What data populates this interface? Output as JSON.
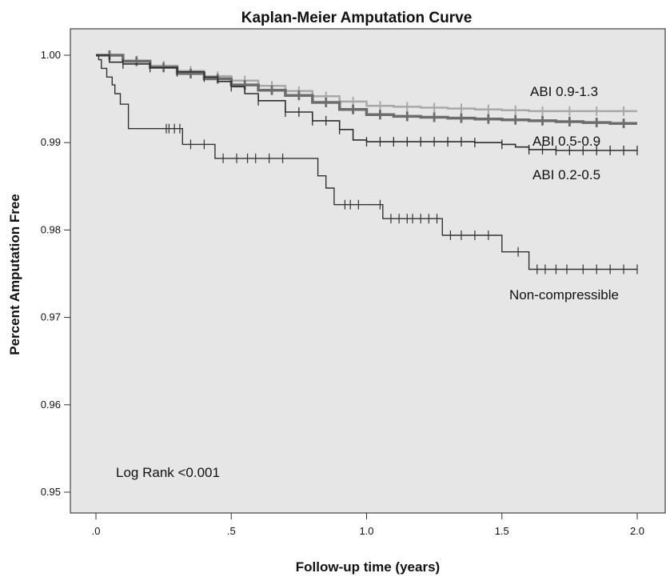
{
  "chart_data": {
    "type": "line",
    "title": "Kaplan-Meier Amputation Curve",
    "xlabel": "Follow-up time (years)",
    "ylabel": "Percent Amputation Free",
    "xlim": [
      0,
      2.0
    ],
    "ylim": [
      0.95,
      1.0
    ],
    "x_ticks": [
      {
        "value": 0,
        "label": ".0"
      },
      {
        "value": 0.5,
        "label": ".5"
      },
      {
        "value": 1.0,
        "label": "1.0"
      },
      {
        "value": 1.5,
        "label": "1.5"
      },
      {
        "value": 2.0,
        "label": "2.0"
      }
    ],
    "y_ticks": [
      {
        "value": 1.0,
        "label": "1.00"
      },
      {
        "value": 0.99,
        "label": "0.99"
      },
      {
        "value": 0.98,
        "label": "0.98"
      },
      {
        "value": 0.97,
        "label": "0.97"
      },
      {
        "value": 0.96,
        "label": "0.96"
      },
      {
        "value": 0.95,
        "label": "0.95"
      }
    ],
    "grid": false,
    "background": "#e6e6e6",
    "annotation": "Log Rank <0.001",
    "series": [
      {
        "name": "ABI 0.9-1.3",
        "color": "#a8a8a8",
        "stroke": 2.5,
        "x": [
          0,
          0.1,
          0.2,
          0.3,
          0.4,
          0.5,
          0.6,
          0.7,
          0.8,
          0.9,
          1.0,
          1.1,
          1.2,
          1.3,
          1.4,
          1.5,
          1.6,
          1.7,
          1.8,
          1.9,
          2.0
        ],
        "y": [
          1.0,
          0.9994,
          0.9988,
          0.9982,
          0.9976,
          0.9971,
          0.9965,
          0.9959,
          0.9953,
          0.9947,
          0.9942,
          0.9941,
          0.994,
          0.9939,
          0.9938,
          0.9937,
          0.9936,
          0.9936,
          0.9936,
          0.9936,
          0.9936
        ],
        "censor_x": [
          0.05,
          0.15,
          0.25,
          0.35,
          0.45,
          0.55,
          0.65,
          0.75,
          0.85,
          0.95,
          1.05,
          1.15,
          1.25,
          1.35,
          1.45,
          1.55,
          1.65,
          1.75,
          1.85,
          1.95
        ]
      },
      {
        "name": "ABI 0.5-0.9",
        "color": "#6c6c6c",
        "stroke": 3.5,
        "x": [
          0,
          0.1,
          0.2,
          0.3,
          0.4,
          0.5,
          0.6,
          0.7,
          0.8,
          0.9,
          1.0,
          1.1,
          1.2,
          1.3,
          1.4,
          1.5,
          1.6,
          1.7,
          1.8,
          1.9,
          2.0
        ],
        "y": [
          1.0,
          0.9993,
          0.9986,
          0.9979,
          0.9973,
          0.9966,
          0.996,
          0.9954,
          0.9946,
          0.9938,
          0.9932,
          0.993,
          0.9929,
          0.9928,
          0.9927,
          0.9926,
          0.9925,
          0.9924,
          0.9923,
          0.9922,
          0.9922
        ],
        "censor_x": [
          0.05,
          0.15,
          0.25,
          0.35,
          0.45,
          0.55,
          0.65,
          0.75,
          0.85,
          0.95,
          1.05,
          1.15,
          1.25,
          1.35,
          1.45,
          1.55,
          1.65,
          1.75,
          1.85,
          1.95
        ]
      },
      {
        "name": "ABI 0.2-0.5",
        "color": "#2e2e2e",
        "stroke": 1.6,
        "x": [
          0,
          0.05,
          0.1,
          0.2,
          0.3,
          0.4,
          0.45,
          0.5,
          0.55,
          0.6,
          0.7,
          0.8,
          0.9,
          0.95,
          1.0,
          1.1,
          1.2,
          1.3,
          1.4,
          1.5,
          1.55,
          1.6,
          1.7,
          1.8,
          1.9,
          2.0
        ],
        "y": [
          1.0,
          0.9992,
          0.999,
          0.9986,
          0.9981,
          0.9975,
          0.997,
          0.9964,
          0.9956,
          0.9948,
          0.9935,
          0.9925,
          0.9915,
          0.9903,
          0.9901,
          0.9901,
          0.9901,
          0.9901,
          0.99,
          0.9898,
          0.9895,
          0.9892,
          0.9891,
          0.9891,
          0.9891,
          0.9891
        ],
        "censor_x": [
          0.1,
          0.2,
          0.3,
          0.4,
          0.5,
          0.6,
          0.7,
          0.75,
          0.8,
          0.85,
          0.9,
          1.0,
          1.05,
          1.1,
          1.15,
          1.2,
          1.25,
          1.3,
          1.35,
          1.4,
          1.5,
          1.6,
          1.65,
          1.7,
          1.75,
          1.8,
          1.85,
          1.9,
          1.95,
          2.0
        ]
      },
      {
        "name": "Non-compressible",
        "color": "#333333",
        "stroke": 1.4,
        "x": [
          0,
          0.01,
          0.02,
          0.04,
          0.06,
          0.07,
          0.09,
          0.12,
          0.32,
          0.44,
          0.82,
          0.85,
          0.88,
          1.06,
          1.28,
          1.5,
          1.6,
          1.62,
          2.0
        ],
        "y": [
          1.0,
          0.9995,
          0.9985,
          0.9975,
          0.9966,
          0.9956,
          0.9944,
          0.9916,
          0.9898,
          0.9882,
          0.9862,
          0.9848,
          0.9829,
          0.9813,
          0.9794,
          0.9775,
          0.9755,
          0.9755,
          0.9755
        ],
        "censor_x": [
          0.26,
          0.27,
          0.29,
          0.31,
          0.35,
          0.4,
          0.47,
          0.52,
          0.56,
          0.59,
          0.64,
          0.69,
          0.92,
          0.94,
          0.97,
          1.05,
          1.09,
          1.12,
          1.15,
          1.17,
          1.2,
          1.23,
          1.26,
          1.31,
          1.35,
          1.4,
          1.45,
          1.56,
          1.63,
          1.66,
          1.7,
          1.74,
          1.8,
          1.85,
          1.9,
          1.95,
          2.0
        ]
      }
    ]
  }
}
